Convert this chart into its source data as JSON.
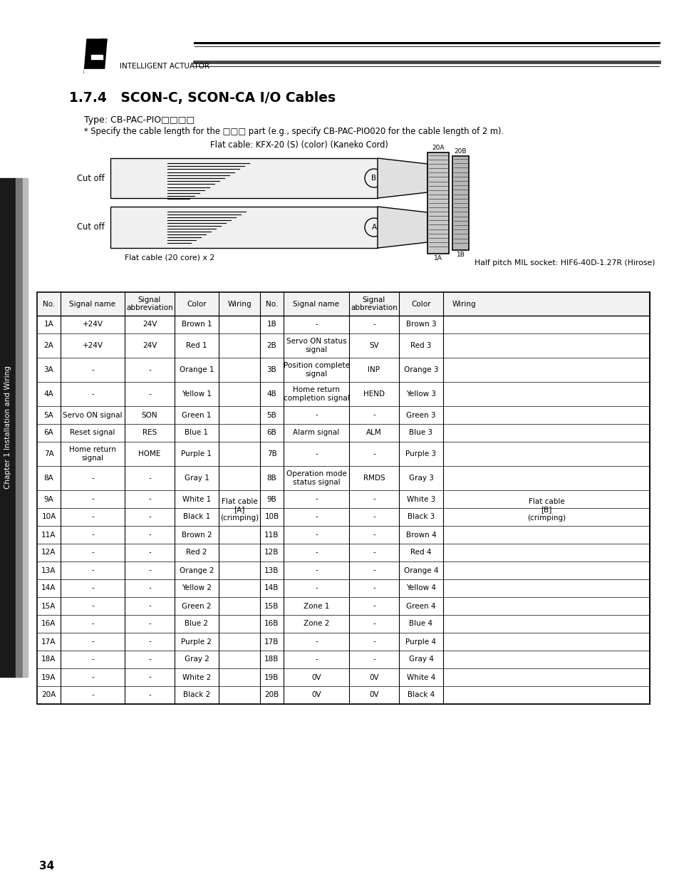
{
  "page_title": "1.7.4   SCON-C, SCON-CA I/O Cables",
  "type_label": "Type: CB-PAC-PIO□□□□",
  "note_label": "* Specify the cable length for the □□□ part (e.g., specify CB-PAC-PIO020 for the cable length of 2 m).",
  "flat_cable_label": "Flat cable: KFX-20 (S) (color) (Kaneko Cord)",
  "flat_cable_bottom": "Flat cable (20 core) x 2",
  "half_pitch_label": "Half pitch MIL socket: HIF6-40D-1.27R (Hirose)",
  "cut_off": "Cut off",
  "chapter_label": "Chapter 1 Installation and Wiring",
  "page_number": "34",
  "logo_text": "INTELLIGENT ACTUATOR",
  "left_rows": [
    [
      "1A",
      "+24V",
      "24V",
      "Brown 1"
    ],
    [
      "2A",
      "+24V",
      "24V",
      "Red 1"
    ],
    [
      "3A",
      "-",
      "-",
      "Orange 1"
    ],
    [
      "4A",
      "-",
      "-",
      "Yellow 1"
    ],
    [
      "5A",
      "Servo ON signal",
      "SON",
      "Green 1"
    ],
    [
      "6A",
      "Reset signal",
      "RES",
      "Blue 1"
    ],
    [
      "7A",
      "Home return\nsignal",
      "HOME",
      "Purple 1"
    ],
    [
      "8A",
      "-",
      "-",
      "Gray 1"
    ],
    [
      "9A",
      "-",
      "-",
      "White 1"
    ],
    [
      "10A",
      "-",
      "-",
      "Black 1"
    ],
    [
      "11A",
      "-",
      "-",
      "Brown 2"
    ],
    [
      "12A",
      "-",
      "-",
      "Red 2"
    ],
    [
      "13A",
      "-",
      "-",
      "Orange 2"
    ],
    [
      "14A",
      "-",
      "-",
      "Yellow 2"
    ],
    [
      "15A",
      "-",
      "-",
      "Green 2"
    ],
    [
      "16A",
      "-",
      "-",
      "Blue 2"
    ],
    [
      "17A",
      "-",
      "-",
      "Purple 2"
    ],
    [
      "18A",
      "-",
      "-",
      "Gray 2"
    ],
    [
      "19A",
      "-",
      "-",
      "White 2"
    ],
    [
      "20A",
      "-",
      "-",
      "Black 2"
    ]
  ],
  "right_rows": [
    [
      "1B",
      "-",
      "-",
      "Brown 3"
    ],
    [
      "2B",
      "Servo ON status\nsignal",
      "SV",
      "Red 3"
    ],
    [
      "3B",
      "Position complete\nsignal",
      "INP",
      "Orange 3"
    ],
    [
      "4B",
      "Home return\ncompletion signal",
      "HEND",
      "Yellow 3"
    ],
    [
      "5B",
      "-",
      "-",
      "Green 3"
    ],
    [
      "6B",
      "Alarm signal",
      "ALM",
      "Blue 3"
    ],
    [
      "7B",
      "-",
      "-",
      "Purple 3"
    ],
    [
      "8B",
      "Operation mode\nstatus signal",
      "RMDS",
      "Gray 3"
    ],
    [
      "9B",
      "-",
      "-",
      "White 3"
    ],
    [
      "10B",
      "-",
      "-",
      "Black 3"
    ],
    [
      "11B",
      "-",
      "-",
      "Brown 4"
    ],
    [
      "12B",
      "-",
      "-",
      "Red 4"
    ],
    [
      "13B",
      "-",
      "-",
      "Orange 4"
    ],
    [
      "14B",
      "-",
      "-",
      "Yellow 4"
    ],
    [
      "15B",
      "Zone 1",
      "-",
      "Green 4"
    ],
    [
      "16B",
      "Zone 2",
      "-",
      "Blue 4"
    ],
    [
      "17B",
      "-",
      "-",
      "Purple 4"
    ],
    [
      "18B",
      "-",
      "-",
      "Gray 4"
    ],
    [
      "19B",
      "0V",
      "0V",
      "White 4"
    ],
    [
      "20B",
      "0V",
      "0V",
      "Black 4"
    ]
  ],
  "left_wiring_label": "Flat cable\n[A]\n(crimping)",
  "right_wiring_label": "Flat cable\n[B]\n(crimping)",
  "bg_color": "#ffffff",
  "line_color": "#000000"
}
